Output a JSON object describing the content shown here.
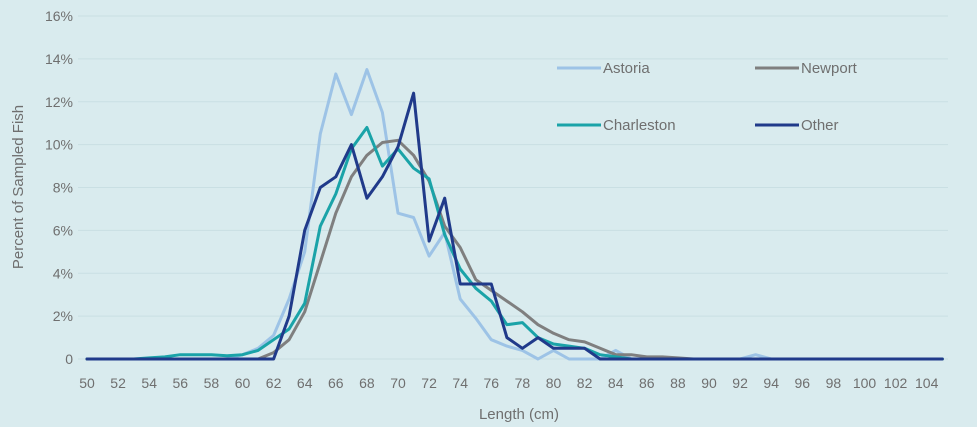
{
  "chart_data": {
    "type": "line",
    "title": "",
    "xlabel": "Length (cm)",
    "ylabel": "Percent of Sampled Fish",
    "xlim": [
      50,
      105
    ],
    "ylim": [
      0,
      16
    ],
    "grid": true,
    "legend_position": "top-right",
    "x_ticks": [
      50,
      52,
      54,
      56,
      58,
      60,
      62,
      64,
      66,
      68,
      70,
      72,
      74,
      76,
      78,
      80,
      82,
      84,
      86,
      88,
      90,
      92,
      94,
      96,
      98,
      100,
      102,
      104
    ],
    "y_ticks": [
      {
        "value": 0,
        "label": "0"
      },
      {
        "value": 2,
        "label": "2%"
      },
      {
        "value": 4,
        "label": "4%"
      },
      {
        "value": 6,
        "label": "6%"
      },
      {
        "value": 8,
        "label": "8%"
      },
      {
        "value": 10,
        "label": "10%"
      },
      {
        "value": 12,
        "label": "12%"
      },
      {
        "value": 14,
        "label": "14%"
      },
      {
        "value": 16,
        "label": "16%"
      }
    ],
    "x": [
      50,
      51,
      52,
      53,
      54,
      55,
      56,
      57,
      58,
      59,
      60,
      61,
      62,
      63,
      64,
      65,
      66,
      67,
      68,
      69,
      70,
      71,
      72,
      73,
      74,
      75,
      76,
      77,
      78,
      79,
      80,
      81,
      82,
      83,
      84,
      85,
      86,
      87,
      88,
      89,
      90,
      91,
      92,
      93,
      94,
      95,
      96,
      97,
      98,
      99,
      100,
      101,
      102,
      103,
      104,
      105
    ],
    "series": [
      {
        "name": "Astoria",
        "color": "#9dc3e6",
        "values": [
          0,
          0,
          0,
          0,
          0,
          0,
          0,
          0,
          0,
          0,
          0.2,
          0.5,
          1.1,
          2.8,
          5.0,
          10.5,
          13.3,
          11.4,
          13.5,
          11.5,
          6.8,
          6.6,
          4.8,
          5.9,
          2.8,
          1.9,
          0.9,
          0.6,
          0.4,
          0,
          0.4,
          0,
          0,
          0,
          0.4,
          0,
          0,
          0,
          0,
          0,
          0,
          0,
          0,
          0.2,
          0,
          0,
          0,
          0,
          0,
          0,
          0,
          0,
          0,
          0,
          0,
          0
        ]
      },
      {
        "name": "Newport",
        "color": "#7f7f7f",
        "values": [
          0,
          0,
          0,
          0,
          0,
          0,
          0,
          0,
          0,
          0,
          0,
          0,
          0.3,
          0.9,
          2.2,
          4.5,
          6.8,
          8.5,
          9.5,
          10.1,
          10.2,
          9.5,
          8.3,
          6.2,
          5.2,
          3.7,
          3.2,
          2.7,
          2.2,
          1.6,
          1.2,
          0.9,
          0.8,
          0.5,
          0.2,
          0.2,
          0.1,
          0.1,
          0.05,
          0,
          0,
          0,
          0,
          0,
          0,
          0,
          0,
          0,
          0,
          0,
          0,
          0,
          0,
          0,
          0,
          0
        ]
      },
      {
        "name": "Charleston",
        "color": "#1aa3a8",
        "values": [
          0,
          0,
          0,
          0,
          0.05,
          0.1,
          0.2,
          0.2,
          0.2,
          0.15,
          0.2,
          0.4,
          0.9,
          1.4,
          2.6,
          6.2,
          7.7,
          9.8,
          10.8,
          9.0,
          9.8,
          8.9,
          8.4,
          5.8,
          4.2,
          3.3,
          2.7,
          1.6,
          1.7,
          1.0,
          0.7,
          0.6,
          0.5,
          0.2,
          0.1,
          0,
          0,
          0,
          0,
          0,
          0,
          0,
          0,
          0,
          0,
          0,
          0,
          0,
          0,
          0,
          0,
          0,
          0,
          0,
          0,
          0
        ]
      },
      {
        "name": "Other",
        "color": "#203a8a",
        "values": [
          0,
          0,
          0,
          0,
          0,
          0,
          0,
          0,
          0,
          0,
          0,
          0,
          0,
          2.0,
          6.0,
          8.0,
          8.5,
          10.0,
          7.5,
          8.5,
          9.9,
          12.4,
          5.5,
          7.5,
          3.5,
          3.5,
          3.5,
          1.0,
          0.5,
          1.0,
          0.5,
          0.5,
          0.5,
          0,
          0,
          0,
          0,
          0,
          0,
          0,
          0,
          0,
          0,
          0,
          0,
          0,
          0,
          0,
          0,
          0,
          0,
          0,
          0,
          0,
          0,
          0
        ]
      }
    ]
  }
}
